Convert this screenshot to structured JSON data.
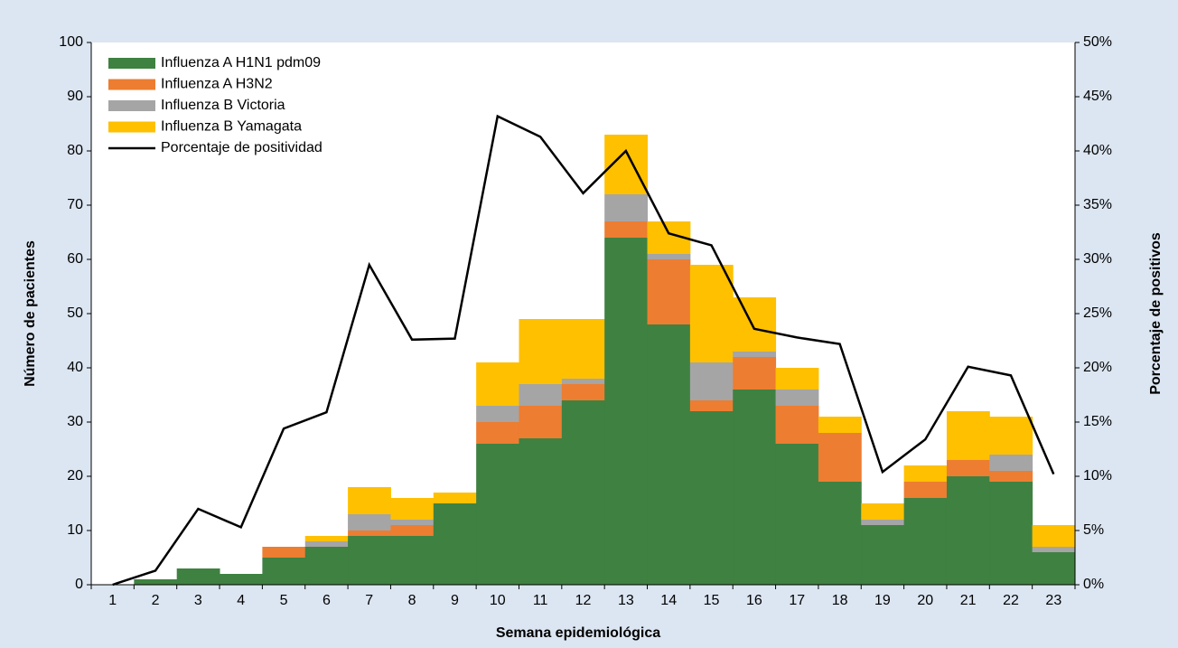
{
  "chart_data": {
    "type": "bar",
    "stacked": true,
    "x_label": "Semana epidemiológica",
    "y_label": "Número de pacientes",
    "y2_label": "Porcentaje de positivos",
    "categories": [
      "1",
      "2",
      "3",
      "4",
      "5",
      "6",
      "7",
      "8",
      "9",
      "10",
      "11",
      "12",
      "13",
      "14",
      "15",
      "16",
      "17",
      "18",
      "19",
      "20",
      "21",
      "22",
      "23"
    ],
    "series": [
      {
        "name": "Influenza A H1N1 pdm09",
        "color": "#3f8141",
        "values": [
          0,
          1,
          3,
          2,
          5,
          7,
          9,
          9,
          15,
          26,
          27,
          34,
          64,
          48,
          32,
          36,
          26,
          19,
          11,
          16,
          20,
          19,
          6
        ]
      },
      {
        "name": "Influenza A H3N2",
        "color": "#ed7d31",
        "values": [
          0,
          0,
          0,
          0,
          2,
          0,
          1,
          2,
          0,
          4,
          6,
          3,
          3,
          12,
          2,
          6,
          7,
          9,
          0,
          3,
          3,
          2,
          0
        ]
      },
      {
        "name": "Influenza B Victoria",
        "color": "#a5a5a5",
        "values": [
          0,
          0,
          0,
          0,
          0,
          1,
          3,
          1,
          0,
          3,
          4,
          1,
          5,
          1,
          7,
          1,
          3,
          0,
          1,
          0,
          0,
          3,
          1
        ]
      },
      {
        "name": "Influenza B Yamagata",
        "color": "#ffc000",
        "values": [
          0,
          0,
          0,
          0,
          0,
          1,
          5,
          4,
          2,
          8,
          12,
          11,
          11,
          6,
          18,
          10,
          4,
          3,
          3,
          3,
          9,
          7,
          4
        ]
      },
      {
        "name": "Porcentaje de positividad",
        "type": "line",
        "axis": "y2",
        "color": "#000000",
        "values": [
          0,
          1.3,
          7,
          5.3,
          14.4,
          15.9,
          29.5,
          22.6,
          22.7,
          43.2,
          41.3,
          36.1,
          40,
          32.4,
          31.3,
          23.6,
          22.8,
          22.2,
          10.4,
          13.4,
          20.1,
          19.3,
          10.2
        ]
      }
    ],
    "ylim": [
      0,
      100
    ],
    "yticks": [
      0,
      10,
      20,
      30,
      40,
      50,
      60,
      70,
      80,
      90,
      100
    ],
    "y2lim": [
      0,
      50
    ],
    "y2ticks": [
      {
        "value": 0,
        "label": "0%"
      },
      {
        "value": 5,
        "label": "5%"
      },
      {
        "value": 10,
        "label": "10%"
      },
      {
        "value": 15,
        "label": "15%"
      },
      {
        "value": 20,
        "label": "20%"
      },
      {
        "value": 25,
        "label": "25%"
      },
      {
        "value": 30,
        "label": "30%"
      },
      {
        "value": 35,
        "label": "35%"
      },
      {
        "value": 40,
        "label": "40%"
      },
      {
        "value": 45,
        "label": "45%"
      },
      {
        "value": 50,
        "label": "50%"
      }
    ],
    "grid": false,
    "legend": "top-left"
  }
}
